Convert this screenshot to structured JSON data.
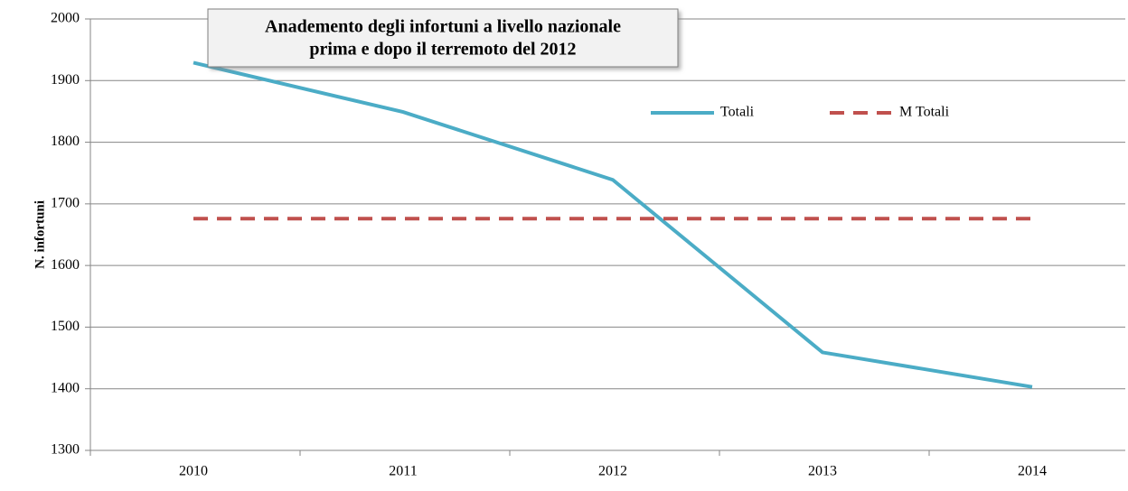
{
  "chart_data": {
    "type": "line",
    "title": [
      "Anademento degli infortuni a livello nazionale",
      "prima e dopo il terremoto del 2012"
    ],
    "ylabel": "N. infortuni",
    "categories": [
      "2010",
      "2011",
      "2012",
      "2013",
      "2014"
    ],
    "series": [
      {
        "name": "Totali",
        "color": "#4bacc6",
        "dash": false,
        "values": [
          1929,
          1849,
          1739,
          1459,
          1403
        ]
      },
      {
        "name": "M Totali",
        "color": "#c0504d",
        "dash": true,
        "values": [
          1676,
          1676,
          1676,
          1676,
          1676
        ]
      }
    ],
    "ylim": [
      1300,
      2000
    ],
    "yticks": [
      1300,
      1400,
      1500,
      1600,
      1700,
      1800,
      1900,
      2000
    ],
    "grid": true
  }
}
